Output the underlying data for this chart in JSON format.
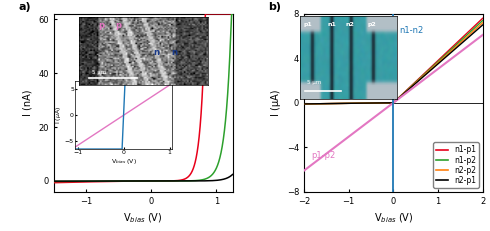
{
  "panel_a": {
    "title": "a)",
    "xlabel": "V$_{bias}$ (V)",
    "ylabel": "I (nA)",
    "xlim": [
      -1.5,
      1.25
    ],
    "ylim": [
      -4,
      62
    ],
    "yticks": [
      0,
      20,
      40,
      60
    ],
    "xticks": [
      -1,
      0,
      1
    ],
    "curves": {
      "red": {
        "vt": 0.22,
        "n": 14.0,
        "Isat": 0.012,
        "rev": 0.35,
        "color": "#e8001a"
      },
      "green": {
        "vt": 0.42,
        "n": 11.0,
        "Isat": 0.008,
        "rev": 0.1,
        "color": "#2ca02c"
      },
      "black": {
        "vt": 0.6,
        "n": 9.5,
        "Isat": 0.005,
        "rev": 0.04,
        "color": "#000000"
      }
    }
  },
  "panel_b": {
    "title": "b)",
    "xlabel": "V$_{bias}$ (V)",
    "ylabel": "I (μA)",
    "xlim": [
      -2,
      2
    ],
    "ylim": [
      -8,
      8
    ],
    "yticks": [
      -8,
      -4,
      0,
      4,
      8
    ],
    "xticks": [
      -2,
      -1,
      0,
      1,
      2
    ],
    "n1n2_color": "#1f77b4",
    "p1p2_color": "#e377c2",
    "p1p2_slope": 3.05,
    "curves_diode": [
      {
        "slope_fwd": 3.8,
        "slope_rev": 0.05,
        "color": "#e8001a",
        "label": "n1-p1"
      },
      {
        "slope_fwd": 3.7,
        "slope_rev": 0.05,
        "color": "#2ca02c",
        "label": "n1-p2"
      },
      {
        "slope_fwd": 3.6,
        "slope_rev": 0.05,
        "color": "#ff7f0e",
        "label": "n2-p2"
      },
      {
        "slope_fwd": 3.5,
        "slope_rev": 0.05,
        "color": "#000000",
        "label": "n2-p1"
      }
    ]
  },
  "inset_a_lower": {
    "xlim": [
      -1.05,
      1.05
    ],
    "ylim": [
      -6.5,
      6.5
    ],
    "xticks": [
      -1,
      0,
      1
    ],
    "yticks": [
      -5,
      0,
      5
    ],
    "pink_slope": 5.8,
    "blue_slope": 200.0,
    "pink_color": "#e377c2",
    "blue_color": "#1f77b4"
  }
}
